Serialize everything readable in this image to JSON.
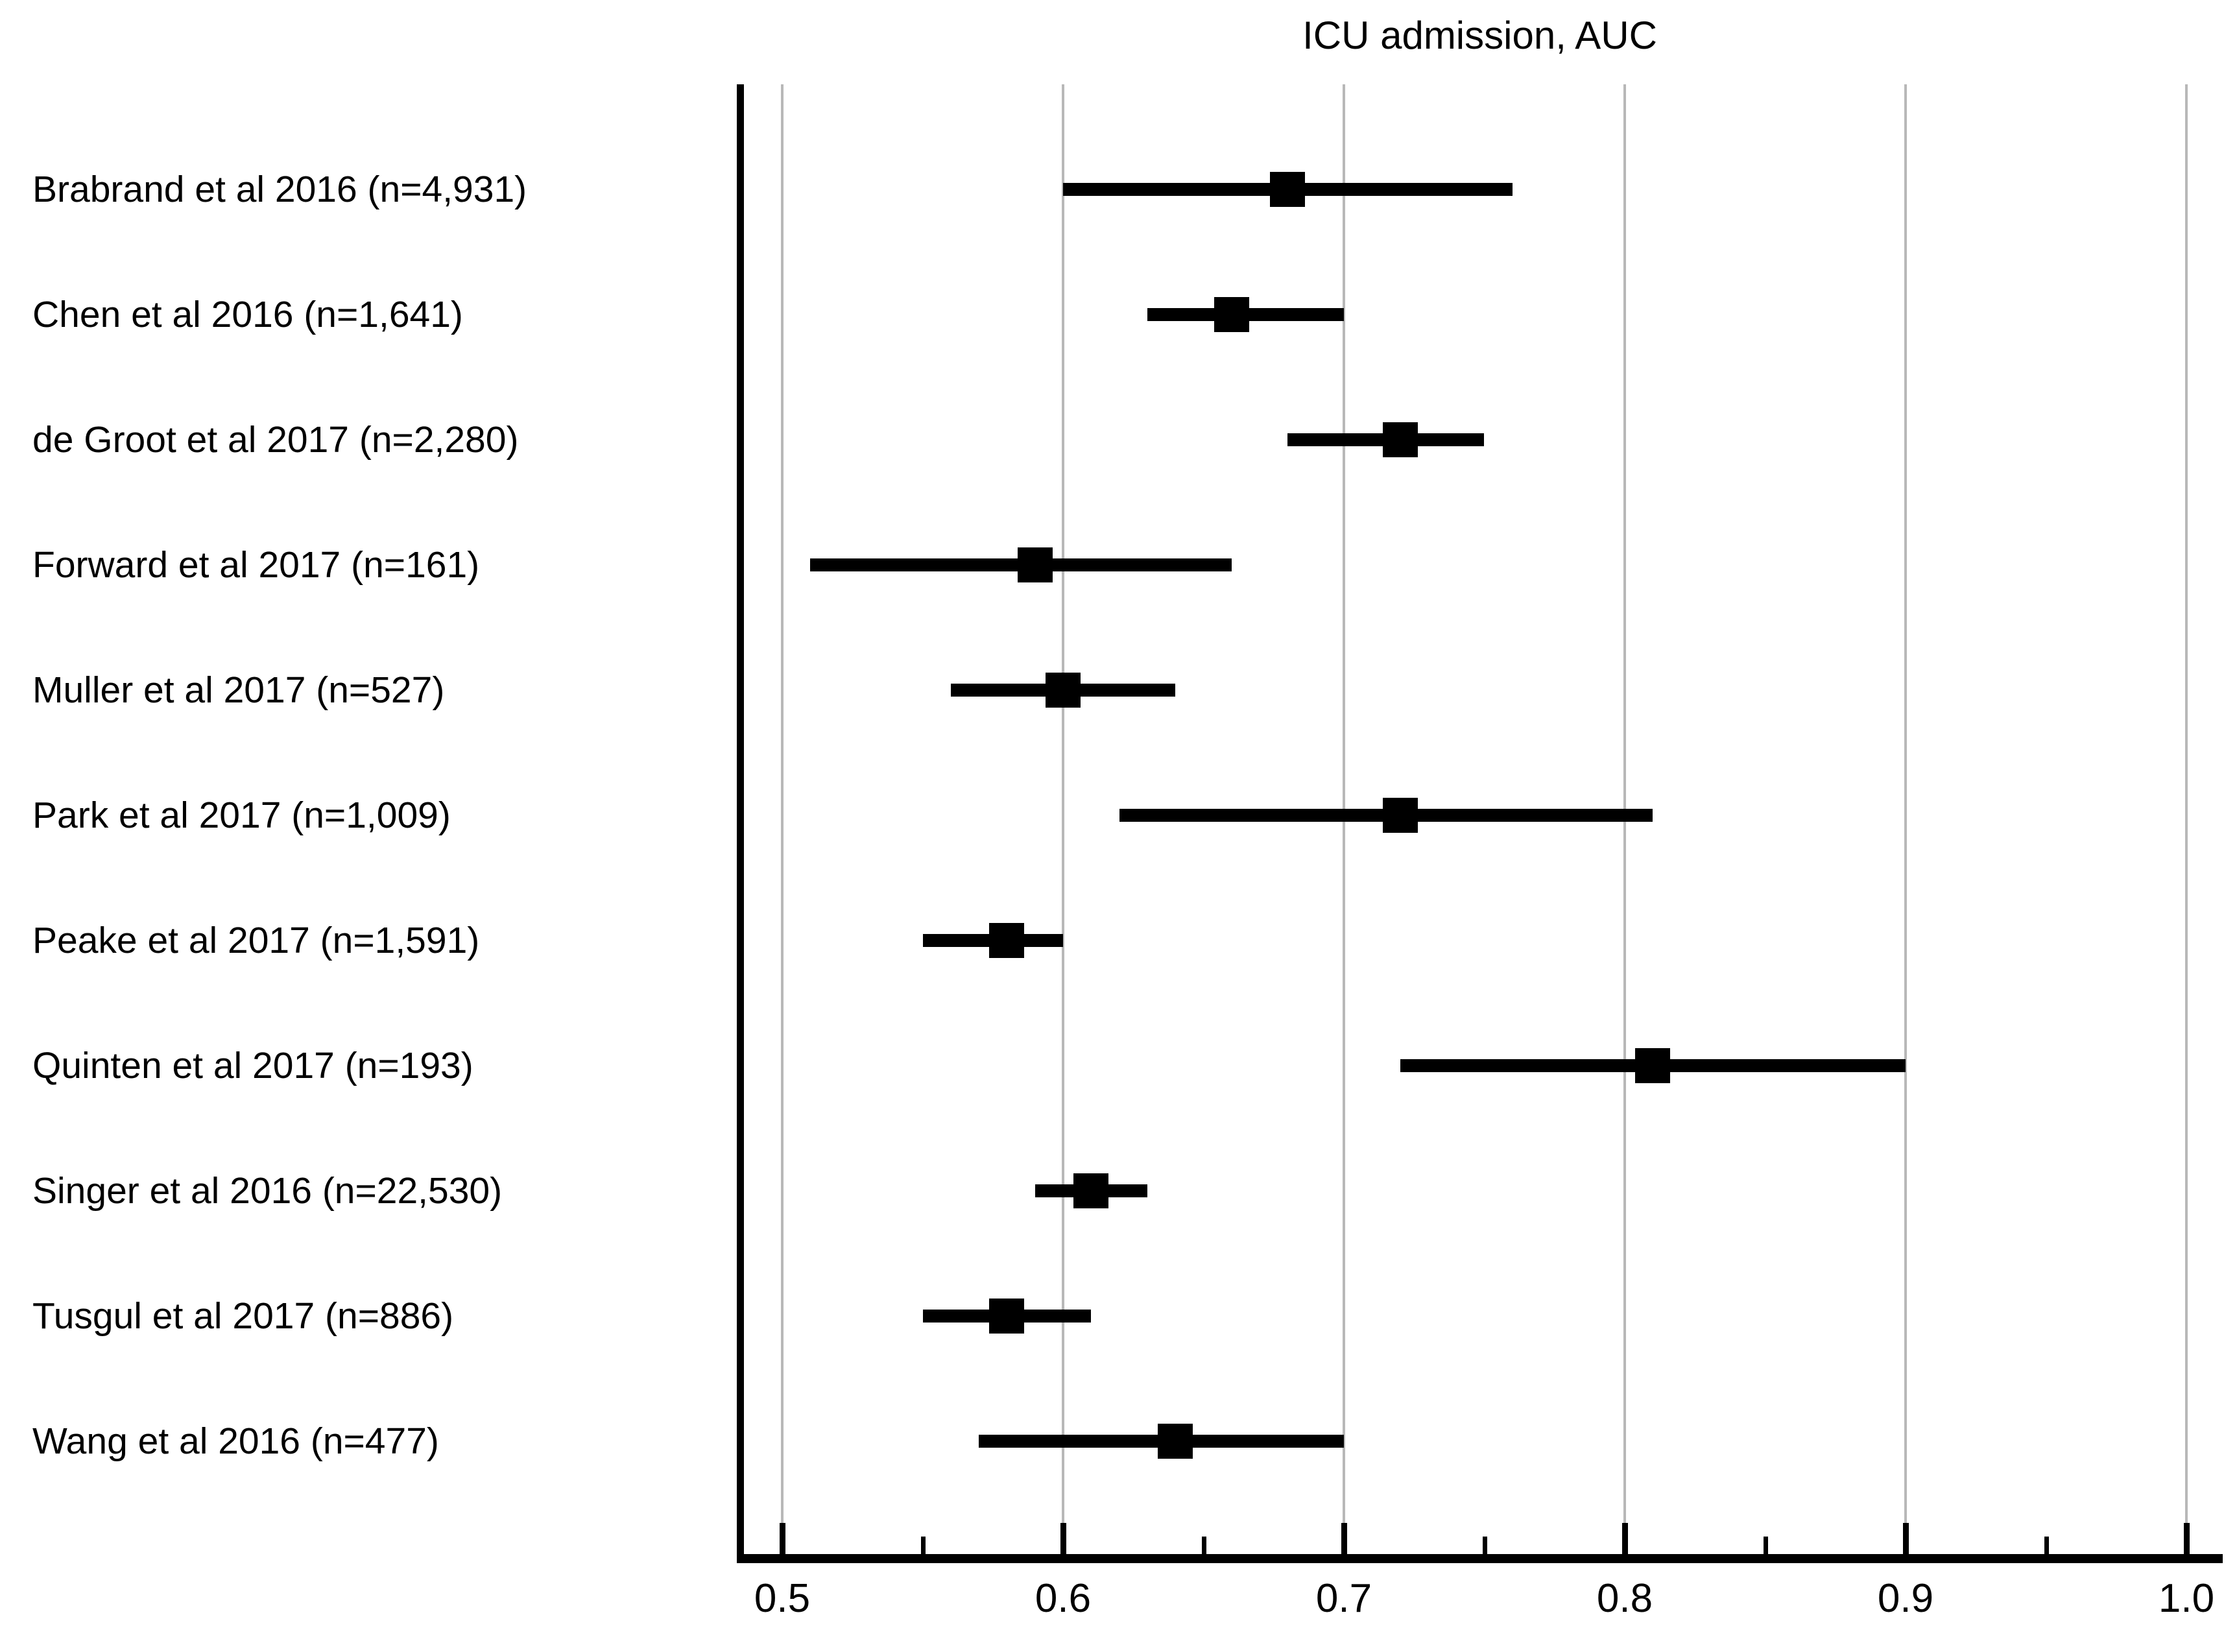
{
  "figure": {
    "type": "forest-plot",
    "background": "#ffffff"
  },
  "colors": {
    "marker": "#000000",
    "ci_line": "#000000",
    "axis": "#000000",
    "gridline": "#b8b8b8",
    "text": "#000000"
  },
  "chart_data": {
    "type": "scatter",
    "subtype": "forest-plot-with-ci",
    "title": "ICU admission, AUC",
    "xlabel": "",
    "ylabel": "",
    "xlim": [
      0.485,
      1.013
    ],
    "x_ticks": [
      0.5,
      0.6,
      0.7,
      0.8,
      0.9,
      1.0
    ],
    "x_tick_labels": [
      "0.5",
      "0.6",
      "0.7",
      "0.8",
      "0.9",
      "1.0"
    ],
    "x_minor_ticks": [
      0.55,
      0.65,
      0.75,
      0.85,
      0.95
    ],
    "grid": "vertical gridlines at major ticks",
    "legend": "none",
    "marker_shape": "filled square",
    "studies": [
      {
        "label": "Brabrand et al 2016 (n=4,931)",
        "auc": 0.68,
        "ci_low": 0.6,
        "ci_high": 0.76
      },
      {
        "label": "Chen et al 2016 (n=1,641)",
        "auc": 0.66,
        "ci_low": 0.63,
        "ci_high": 0.7
      },
      {
        "label": "de Groot et al 2017 (n=2,280)",
        "auc": 0.72,
        "ci_low": 0.68,
        "ci_high": 0.75
      },
      {
        "label": "Forward et al 2017 (n=161)",
        "auc": 0.59,
        "ci_low": 0.51,
        "ci_high": 0.66
      },
      {
        "label": "Muller et al 2017 (n=527)",
        "auc": 0.6,
        "ci_low": 0.56,
        "ci_high": 0.64
      },
      {
        "label": "Park et al 2017 (n=1,009)",
        "auc": 0.72,
        "ci_low": 0.62,
        "ci_high": 0.81
      },
      {
        "label": "Peake et al 2017 (n=1,591)",
        "auc": 0.58,
        "ci_low": 0.55,
        "ci_high": 0.6
      },
      {
        "label": "Quinten et al 2017 (n=193)",
        "auc": 0.81,
        "ci_low": 0.72,
        "ci_high": 0.9
      },
      {
        "label": "Singer et al 2016 (n=22,530)",
        "auc": 0.61,
        "ci_low": 0.59,
        "ci_high": 0.63
      },
      {
        "label": "Tusgul et al 2017 (n=886)",
        "auc": 0.58,
        "ci_low": 0.55,
        "ci_high": 0.61
      },
      {
        "label": "Wang et al 2016 (n=477)",
        "auc": 0.64,
        "ci_low": 0.57,
        "ci_high": 0.7
      }
    ]
  }
}
